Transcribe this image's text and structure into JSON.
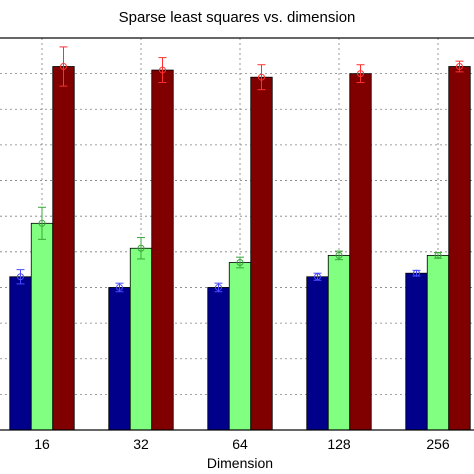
{
  "chart_data": {
    "type": "bar",
    "title": "Sparse least squares vs. dimension",
    "xlabel": "Dimension",
    "ylabel": "",
    "categories": [
      "16",
      "32",
      "64",
      "128",
      "256"
    ],
    "ylim": [
      0,
      1.1
    ],
    "grid": true,
    "series": [
      {
        "color": "#00008b",
        "marker_color": "#4a4aff",
        "values": [
          0.43,
          0.4,
          0.4,
          0.43,
          0.44
        ],
        "errors": [
          0.02,
          0.012,
          0.012,
          0.01,
          0.008
        ]
      },
      {
        "color": "#80ff80",
        "marker_color": "#3aa63a",
        "values": [
          0.58,
          0.51,
          0.47,
          0.49,
          0.49
        ],
        "errors": [
          0.045,
          0.03,
          0.015,
          0.012,
          0.008
        ]
      },
      {
        "color": "#800000",
        "marker_color": "#ff3030",
        "values": [
          1.02,
          1.01,
          0.99,
          1.0,
          1.02
        ],
        "errors": [
          0.055,
          0.035,
          0.035,
          0.025,
          0.015
        ]
      }
    ]
  }
}
